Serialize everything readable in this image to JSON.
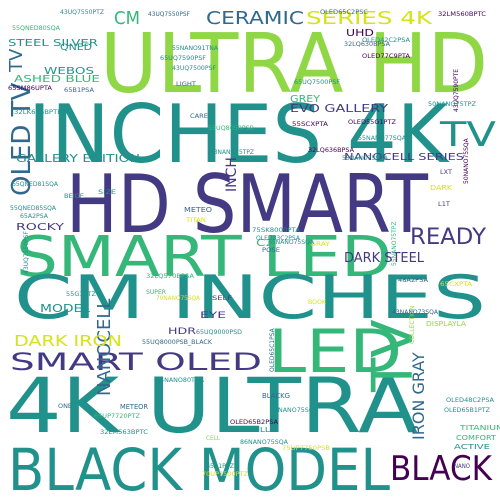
{
  "colors": {
    "background": "#ffffff",
    "yellow": "#d8e219",
    "lime": "#8fd744",
    "green": "#35b779",
    "teal": "#21918c",
    "blue": "#31688e",
    "indigo": "#443983",
    "purple": "#440154"
  },
  "words": [
    {
      "text": "ULTRA HD",
      "color": "lime"
    },
    {
      "text": "INCHES 4K",
      "color": "teal"
    },
    {
      "text": "HD SMART",
      "color": "indigo"
    },
    {
      "text": "SMART LED",
      "color": "green"
    },
    {
      "text": "CM INCHES",
      "color": "teal"
    },
    {
      "text": "4K ULTRA",
      "color": "teal"
    },
    {
      "text": "BLACK MODEL",
      "color": "teal"
    },
    {
      "text": "LED",
      "color": "green"
    },
    {
      "text": "TV",
      "color": "green"
    },
    {
      "text": "SMART OLED",
      "color": "indigo"
    },
    {
      "text": "OLED TV",
      "color": "blue"
    },
    {
      "text": "TV",
      "color": "teal"
    },
    {
      "text": "BLACK",
      "color": "purple"
    },
    {
      "text": "READY",
      "color": "indigo"
    },
    {
      "text": "CERAMIC",
      "color": "blue"
    },
    {
      "text": "SERIES 4K",
      "color": "yellow"
    },
    {
      "text": "CM",
      "color": "green"
    },
    {
      "text": "TV",
      "color": "blue"
    },
    {
      "text": "NANOCELL",
      "color": "blue"
    },
    {
      "text": "IRON GRAY",
      "color": "blue"
    },
    {
      "text": "DARK IRON",
      "color": "yellow"
    },
    {
      "text": "DARK STEEL",
      "color": "indigo"
    },
    {
      "text": "NANOCELL SERIES",
      "color": "indigo"
    },
    {
      "text": "GALLERY EDITION",
      "color": "teal"
    },
    {
      "text": "EVO GALLERY",
      "color": "indigo"
    },
    {
      "text": "STEEL SILVER",
      "color": "teal"
    },
    {
      "text": "WEBOS",
      "color": "teal"
    },
    {
      "text": "ASHED BLUE",
      "color": "green"
    },
    {
      "text": "INCH",
      "color": "indigo"
    },
    {
      "text": "ROCKY",
      "color": "indigo"
    },
    {
      "text": "MODEL",
      "color": "teal"
    },
    {
      "text": "GREY",
      "color": "green"
    },
    {
      "text": "UHD",
      "color": "purple"
    },
    {
      "text": "EYE",
      "color": "indigo"
    },
    {
      "text": "HDR",
      "color": "indigo"
    },
    {
      "text": "QNED",
      "color": "teal"
    },
    {
      "text": "C2",
      "color": "green"
    },
    {
      "text": "TITANIUM",
      "color": "green"
    },
    {
      "text": "COMFORT",
      "color": "green"
    },
    {
      "text": "ACTIVE",
      "color": "teal"
    },
    {
      "text": "FULL",
      "color": "teal"
    },
    {
      "text": "METEOR",
      "color": "blue"
    },
    {
      "text": "BLACKG",
      "color": "blue"
    },
    {
      "text": "DISPLAYLA",
      "color": "lime"
    },
    {
      "text": "COLLECTION",
      "color": "lime"
    },
    {
      "text": "SELF",
      "color": "indigo"
    },
    {
      "text": "SIZE",
      "color": "teal"
    },
    {
      "text": "DARK",
      "color": "yellow"
    },
    {
      "text": "GRAY",
      "color": "yellow"
    },
    {
      "text": "METEO",
      "color": "blue"
    },
    {
      "text": "TITAN",
      "color": "yellow"
    },
    {
      "text": "BEIGE",
      "color": "teal"
    },
    {
      "text": "LIGHT",
      "color": "blue"
    },
    {
      "text": "POSE",
      "color": "blue"
    },
    {
      "text": "CARE",
      "color": "blue"
    },
    {
      "text": "BOOK",
      "color": "yellow"
    },
    {
      "text": "SUPER",
      "color": "green"
    },
    {
      "text": "CELL",
      "color": "lime"
    },
    {
      "text": "NANO",
      "color": "indigo"
    },
    {
      "text": "ONE",
      "color": "blue"
    },
    {
      "text": "LXT",
      "color": "indigo"
    },
    {
      "text": "L1T",
      "color": "indigo"
    },
    {
      "text": "32LM560BPTC",
      "color": "purple"
    },
    {
      "text": "43UQ7550PSF",
      "color": "blue"
    },
    {
      "text": "43UQ7550PTZ",
      "color": "teal"
    },
    {
      "text": "55QNED80SQA",
      "color": "green"
    },
    {
      "text": "65UQ7590PSF",
      "color": "teal"
    },
    {
      "text": "55NANO91TNA",
      "color": "teal"
    },
    {
      "text": "OLED65C2PSC",
      "color": "blue"
    },
    {
      "text": "OLED42C2PSA",
      "color": "teal"
    },
    {
      "text": "OLED77C9PTA",
      "color": "purple"
    },
    {
      "text": "32LQ630BPSA",
      "color": "blue"
    },
    {
      "text": "43UQ7500PSF",
      "color": "teal"
    },
    {
      "text": "55UQ8050PSB",
      "color": "green"
    },
    {
      "text": "65UQ9000PSD",
      "color": "teal"
    },
    {
      "text": "43UQ7590PTE",
      "color": "purple"
    },
    {
      "text": "55NANO77SQA",
      "color": "teal"
    },
    {
      "text": "OLED55G1PTZ",
      "color": "purple"
    },
    {
      "text": "75SK8000PTA",
      "color": "teal"
    },
    {
      "text": "OLED83C2PSA",
      "color": "teal"
    },
    {
      "text": "32LQ636BPSA",
      "color": "purple"
    },
    {
      "text": "65QNED81SQA",
      "color": "teal"
    },
    {
      "text": "55QNED85SQA",
      "color": "teal"
    },
    {
      "text": "65SM86UPTA",
      "color": "purple"
    },
    {
      "text": "65A2PSA",
      "color": "teal"
    },
    {
      "text": "55SCXPTA",
      "color": "purple"
    },
    {
      "text": "43NANO75TPZ",
      "color": "teal"
    },
    {
      "text": "55NANO75SQA",
      "color": "teal"
    },
    {
      "text": "65NANO75SQA",
      "color": "teal"
    },
    {
      "text": "65UQ7500PSF",
      "color": "teal"
    },
    {
      "text": "32LQ570BPSA",
      "color": "green"
    },
    {
      "text": "55G1PTZ",
      "color": "teal"
    },
    {
      "text": "70NANO75SQA",
      "color": "yellow"
    },
    {
      "text": "55UQ8000PSB_BLACK",
      "color": "blue"
    },
    {
      "text": "48A2PSA",
      "color": "blue"
    },
    {
      "text": "43NANO73SQA",
      "color": "blue"
    },
    {
      "text": "65CXPTA",
      "color": "yellow"
    },
    {
      "text": "55NANO80TNA",
      "color": "teal"
    },
    {
      "text": "OLED65C1PSA",
      "color": "blue"
    },
    {
      "text": "43NANO75SQA",
      "color": "teal"
    },
    {
      "text": "65UP7720PTZ",
      "color": "green"
    },
    {
      "text": "32LM563BPTC",
      "color": "teal"
    },
    {
      "text": "OLED65B2PSA",
      "color": "purple"
    },
    {
      "text": "OLED48C2PSA",
      "color": "teal"
    },
    {
      "text": "OLED65B1PTZ",
      "color": "teal"
    },
    {
      "text": "65A1PTZ",
      "color": "teal"
    },
    {
      "text": "70UP7500PTZ",
      "color": "yellow"
    },
    {
      "text": "86NANO75SQA",
      "color": "teal"
    },
    {
      "text": "75UP7750PSB",
      "color": "yellow"
    },
    {
      "text": "32LK616BPTB",
      "color": "teal"
    },
    {
      "text": "65B1PSA",
      "color": "blue"
    },
    {
      "text": "50NANO75SQA",
      "color": "purple"
    },
    {
      "text": "50NANO75TPZ",
      "color": "teal"
    },
    {
      "text": "55NANO75TPZ",
      "color": "green"
    },
    {
      "text": "43UQ7550PSF",
      "color": "teal"
    }
  ]
}
